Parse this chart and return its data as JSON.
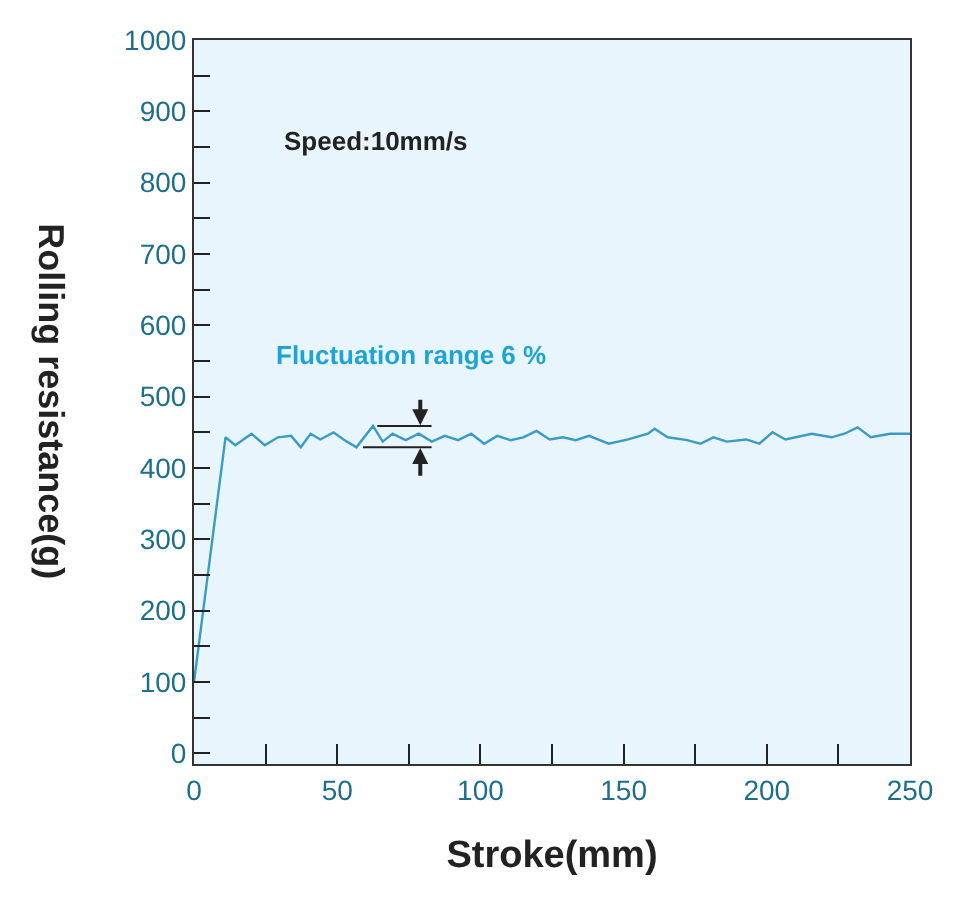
{
  "chart_data": {
    "type": "line",
    "xlabel": "Stroke(mm)",
    "ylabel": "Rolling resistance(g)",
    "annotations": [
      "Speed:10mm/s",
      "Fluctuation range 6 %"
    ],
    "x": [
      0,
      11.0,
      14.4,
      20.1,
      24.7,
      29.3,
      33.9,
      37.3,
      40.7,
      44.1,
      48.7,
      52.2,
      56.7,
      62.5,
      65.9,
      69.3,
      73.9,
      78.5,
      83.0,
      87.6,
      92.2,
      96.8,
      101.3,
      105.9,
      110.5,
      115.0,
      119.6,
      124.2,
      128.8,
      133.3,
      137.9,
      144.8,
      151.6,
      158.5,
      160.8,
      165.4,
      172.2,
      176.8,
      181.4,
      186.0,
      192.8,
      197.4,
      202.0,
      206.5,
      215.7,
      222.6,
      227.1,
      231.7,
      236.3,
      243.1,
      250
    ],
    "series": [
      {
        "color": "#3a9cc4",
        "values": [
          100,
          443,
          432,
          448,
          432,
          443,
          445,
          429,
          448,
          440,
          450,
          440,
          429,
          459,
          437,
          448,
          439,
          448,
          437,
          445,
          439,
          448,
          434,
          445,
          439,
          443,
          452,
          440,
          443,
          439,
          445,
          434,
          440,
          448,
          455,
          443,
          439,
          434,
          443,
          437,
          440,
          434,
          450,
          440,
          448,
          443,
          448,
          457,
          443,
          448,
          448
        ]
      }
    ],
    "xlim": [
      0,
      250
    ],
    "ylim": [
      -15,
      1000
    ],
    "xticks": [
      0,
      {
        "value": 25,
        "label": null
      },
      50,
      {
        "value": 75,
        "label": null
      },
      100,
      {
        "value": 125,
        "label": null
      },
      150,
      {
        "value": 175,
        "label": null
      },
      200,
      {
        "value": 225,
        "label": null
      },
      250
    ],
    "yticks": [
      0,
      {
        "value": 50,
        "label": null
      },
      100,
      {
        "value": 150,
        "label": null
      },
      200,
      {
        "value": 250,
        "label": null
      },
      300,
      {
        "value": 350,
        "label": null
      },
      400,
      {
        "value": 450,
        "label": null
      },
      500,
      {
        "value": 550,
        "label": null
      },
      600,
      {
        "value": 650,
        "label": null
      },
      700,
      {
        "value": 750,
        "label": null
      },
      800,
      {
        "value": 850,
        "label": null
      },
      900,
      {
        "value": 950,
        "label": null
      },
      1000
    ],
    "marker": "none",
    "line_style": "solid"
  }
}
